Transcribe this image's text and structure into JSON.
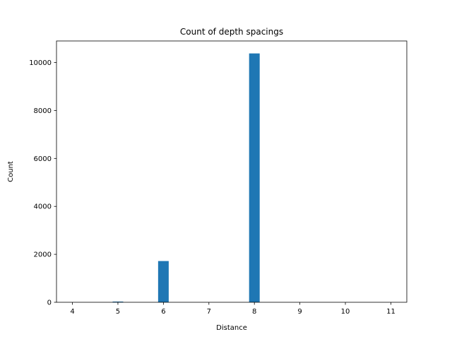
{
  "chart_data": {
    "type": "bar",
    "title": "Count of depth spacings",
    "xlabel": "Distance",
    "ylabel": "Count",
    "xlim": [
      3.65,
      11.35
    ],
    "ylim": [
      0,
      10900
    ],
    "xticks": [
      4,
      5,
      6,
      7,
      8,
      9,
      10,
      11
    ],
    "yticks": [
      0,
      2000,
      4000,
      6000,
      8000,
      10000
    ],
    "bar_width": 0.233,
    "bars": [
      {
        "x": 4,
        "value": 0
      },
      {
        "x": 5,
        "value": 20
      },
      {
        "x": 6,
        "value": 1720
      },
      {
        "x": 7,
        "value": 0
      },
      {
        "x": 8,
        "value": 10380
      },
      {
        "x": 9,
        "value": 0
      },
      {
        "x": 10,
        "value": 0
      },
      {
        "x": 11,
        "value": 0
      }
    ],
    "bar_color": "#1f77b4",
    "grid": false
  }
}
